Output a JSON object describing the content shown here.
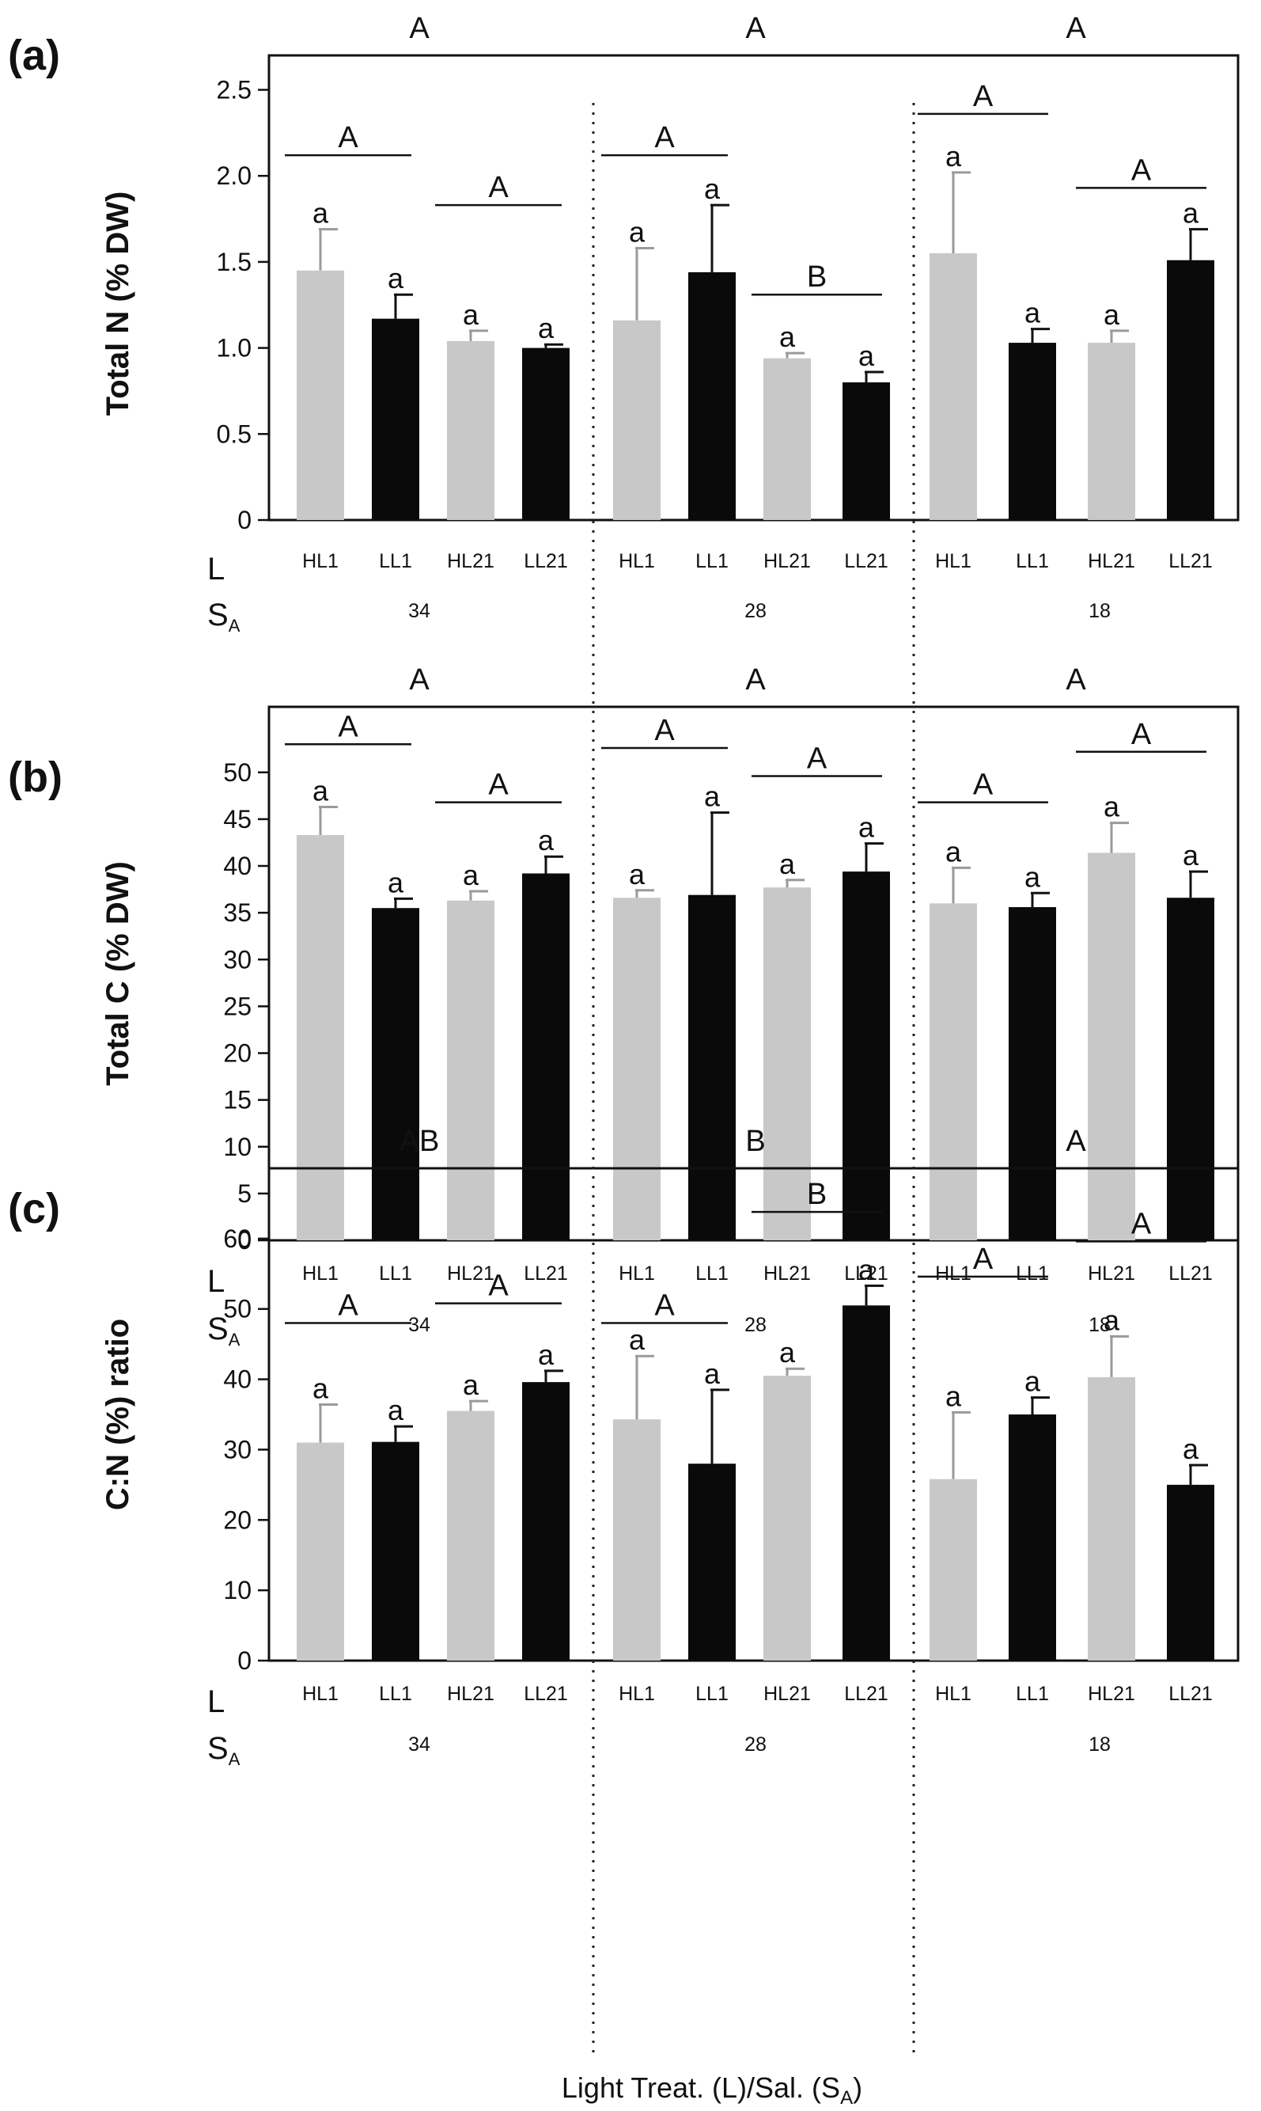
{
  "figure": {
    "x_axis_title": "Light Treat. (L)/Sal. (S",
    "x_axis_title_sub": "A",
    "x_axis_title_end": ")",
    "row_key_light": "L",
    "row_key_sal": "S",
    "row_key_sal_sub": "A"
  },
  "colors": {
    "HL": "#c8c8c8",
    "LL": "#0a0a0a",
    "frame": "#111111"
  },
  "chart_data": [
    {
      "type": "bar",
      "panel_label": "(a)",
      "ylabel": "Total N (% DW)",
      "ylim": [
        0,
        2.7
      ],
      "yticks": [
        0,
        0.5,
        1.0,
        1.5,
        2.0,
        2.5
      ],
      "ytick_labels": [
        "0",
        "0.5",
        "1.0",
        "1.5",
        "2.0",
        "2.5"
      ],
      "categories": [
        "HL1",
        "LL1",
        "HL21",
        "LL21",
        "HL1",
        "LL1",
        "HL21",
        "LL21",
        "HL1",
        "LL1",
        "HL21",
        "LL21"
      ],
      "salinity": [
        "34",
        "28",
        "18"
      ],
      "values": [
        1.45,
        1.17,
        1.04,
        1.0,
        1.16,
        1.44,
        0.94,
        0.8,
        1.55,
        1.03,
        1.03,
        1.51
      ],
      "errors": [
        0.24,
        0.14,
        0.06,
        0.02,
        0.42,
        0.39,
        0.03,
        0.06,
        0.47,
        0.08,
        0.07,
        0.18
      ],
      "bar_letters": [
        "a",
        "a",
        "a",
        "a",
        "a",
        "a",
        "a",
        "a",
        "a",
        "a",
        "a",
        "a"
      ],
      "pair_groups": [
        {
          "bars": [
            0,
            1
          ],
          "letter": "A",
          "value": 2.12
        },
        {
          "bars": [
            2,
            3
          ],
          "letter": "A",
          "value": 1.83
        },
        {
          "bars": [
            4,
            5
          ],
          "letter": "A",
          "value": 2.12
        },
        {
          "bars": [
            6,
            7
          ],
          "letter": "B",
          "value": 1.31
        },
        {
          "bars": [
            8,
            9
          ],
          "letter": "A",
          "value": 2.36
        },
        {
          "bars": [
            10,
            11
          ],
          "letter": "A",
          "value": 1.93
        }
      ],
      "group_letters": [
        "A",
        "A",
        "A"
      ]
    },
    {
      "type": "bar",
      "panel_label": "(b)",
      "ylabel": "Total C (% DW)",
      "ylim": [
        0,
        57
      ],
      "yticks": [
        0,
        5,
        10,
        15,
        20,
        25,
        30,
        35,
        40,
        45,
        50
      ],
      "ytick_labels": [
        "0",
        "5",
        "10",
        "15",
        "20",
        "25",
        "30",
        "35",
        "40",
        "45",
        "50"
      ],
      "categories": [
        "HL1",
        "LL1",
        "HL21",
        "LL21",
        "HL1",
        "LL1",
        "HL21",
        "LL21",
        "HL1",
        "LL1",
        "HL21",
        "LL21"
      ],
      "salinity": [
        "34",
        "28",
        "18"
      ],
      "values": [
        43.3,
        35.5,
        36.3,
        39.2,
        36.6,
        36.9,
        37.7,
        39.4,
        36.0,
        35.6,
        41.4,
        36.6
      ],
      "errors": [
        3.0,
        1.0,
        1.0,
        1.8,
        0.8,
        8.8,
        0.8,
        3.0,
        3.8,
        1.5,
        3.2,
        2.8
      ],
      "bar_letters": [
        "a",
        "a",
        "a",
        "a",
        "a",
        "a",
        "a",
        "a",
        "a",
        "a",
        "a",
        "a"
      ],
      "pair_groups": [
        {
          "bars": [
            0,
            1
          ],
          "letter": "A",
          "value": 53.0
        },
        {
          "bars": [
            2,
            3
          ],
          "letter": "A",
          "value": 46.8
        },
        {
          "bars": [
            4,
            5
          ],
          "letter": "A",
          "value": 52.6
        },
        {
          "bars": [
            6,
            7
          ],
          "letter": "A",
          "value": 49.6
        },
        {
          "bars": [
            8,
            9
          ],
          "letter": "A",
          "value": 46.8
        },
        {
          "bars": [
            10,
            11
          ],
          "letter": "A",
          "value": 52.2
        }
      ],
      "group_letters": [
        "A",
        "A",
        "A"
      ]
    },
    {
      "type": "bar",
      "panel_label": "(c)",
      "ylabel": "C:N (%) ratio",
      "ylim": [
        0,
        70
      ],
      "yticks": [
        0,
        10,
        20,
        30,
        40,
        50,
        60
      ],
      "ytick_labels": [
        "0",
        "10",
        "20",
        "30",
        "40",
        "50",
        "60"
      ],
      "categories": [
        "HL1",
        "LL1",
        "HL21",
        "LL21",
        "HL1",
        "LL1",
        "HL21",
        "LL21",
        "HL1",
        "LL1",
        "HL21",
        "LL21"
      ],
      "salinity": [
        "34",
        "28",
        "18"
      ],
      "values": [
        31.0,
        31.1,
        35.5,
        39.6,
        34.3,
        28.0,
        40.5,
        50.5,
        25.8,
        35.0,
        40.3,
        25.0
      ],
      "errors": [
        5.4,
        2.2,
        1.4,
        1.6,
        9.0,
        10.5,
        1.0,
        2.8,
        9.5,
        2.4,
        5.8,
        2.8
      ],
      "bar_letters": [
        "a",
        "a",
        "a",
        "a",
        "a",
        "a",
        "a",
        "a",
        "a",
        "a",
        "a",
        "a"
      ],
      "pair_groups": [
        {
          "bars": [
            0,
            1
          ],
          "letter": "A",
          "value": 48.0
        },
        {
          "bars": [
            2,
            3
          ],
          "letter": "A",
          "value": 50.8
        },
        {
          "bars": [
            4,
            5
          ],
          "letter": "A",
          "value": 48.0
        },
        {
          "bars": [
            6,
            7
          ],
          "letter": "B",
          "value": 63.8
        },
        {
          "bars": [
            8,
            9
          ],
          "letter": "A",
          "value": 54.6
        },
        {
          "bars": [
            10,
            11
          ],
          "letter": "A",
          "value": 59.6
        }
      ],
      "group_letters": [
        "AB",
        "B",
        "A"
      ]
    }
  ]
}
